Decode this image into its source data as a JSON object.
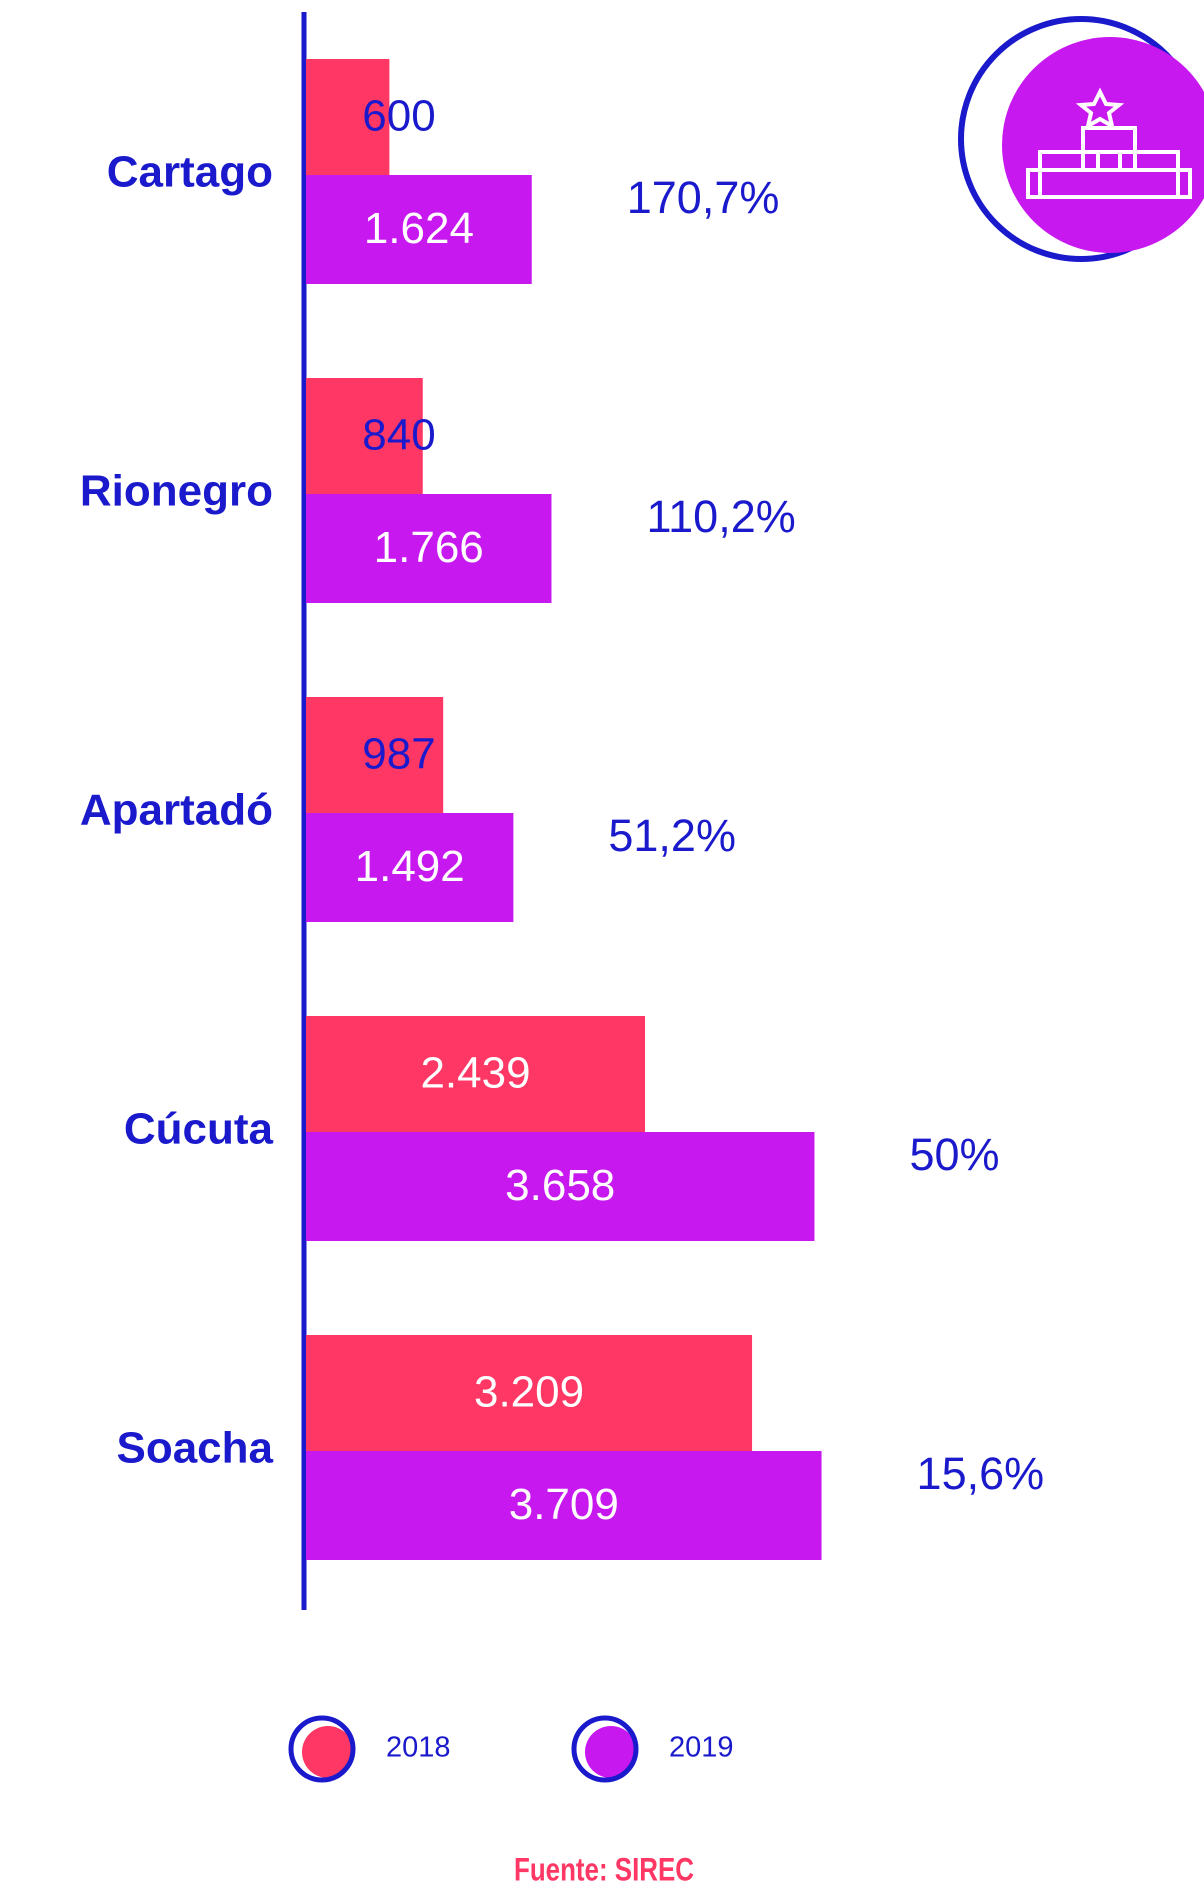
{
  "chart_data": {
    "type": "bar",
    "orientation": "horizontal",
    "categories": [
      "Cartago",
      "Rionegro",
      "Apartadó",
      "Cúcuta",
      "Soacha"
    ],
    "series": [
      {
        "name": "2018",
        "color": "#ff3764",
        "values": [
          600,
          840,
          987,
          2439,
          3209
        ],
        "value_labels": [
          "600",
          "840",
          "987",
          "2.439",
          "3.209"
        ]
      },
      {
        "name": "2019",
        "color": "#c818f0",
        "values": [
          1624,
          1766,
          1492,
          3658,
          3709
        ],
        "value_labels": [
          "1.624",
          "1.766",
          "1.492",
          "3.658",
          "3.709"
        ]
      }
    ],
    "change_labels": [
      "170,7%",
      "110,2%",
      "51,2%",
      "50%",
      "15,6%"
    ],
    "source": "Fuente: SIREC"
  }
}
